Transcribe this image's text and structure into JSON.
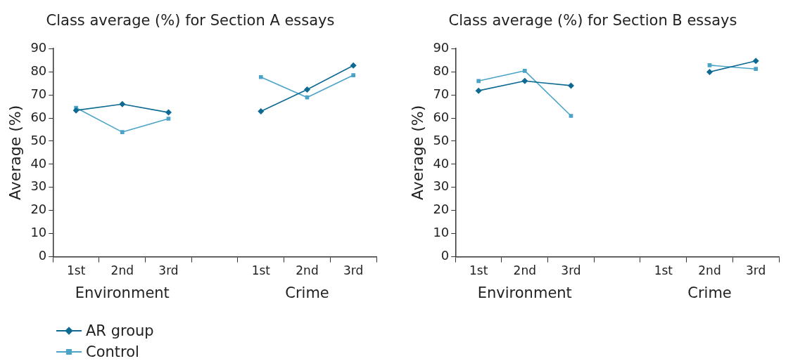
{
  "chart_data": [
    {
      "type": "line",
      "title": "Class average (%) for Section A essays",
      "ylabel": "Average (%)",
      "categories": [
        "1st",
        "2nd",
        "3rd",
        null,
        "1st",
        "2nd",
        "3rd"
      ],
      "annotations": [
        "Environment",
        "Crime"
      ],
      "series": [
        {
          "name": "AR group",
          "color": "#0e6a92",
          "marker": "diamond",
          "values": [
            63.3,
            66,
            62.4,
            null,
            62.9,
            72.3,
            82.7
          ]
        },
        {
          "name": "Control",
          "color": "#4ba3c8",
          "marker": "square",
          "values": [
            64.4,
            53.9,
            59.7,
            null,
            77.7,
            68.9,
            78.5
          ]
        }
      ],
      "ylim": [
        0,
        90
      ],
      "yticks": [
        0,
        10,
        20,
        30,
        40,
        50,
        60,
        70,
        80,
        90
      ],
      "grid": false,
      "legend": "bottom left"
    },
    {
      "type": "line",
      "title": "Class average (%) for Section B essays",
      "ylabel": "Average (%)",
      "categories": [
        "1st",
        "2nd",
        "3rd",
        null,
        "1st",
        "2nd",
        "3rd"
      ],
      "annotations": [
        "Environment",
        "Crime"
      ],
      "series": [
        {
          "color": "#0e6a92",
          "marker": "diamond",
          "values": [
            71.8,
            76,
            74,
            null,
            null,
            79.9,
            84.7
          ]
        },
        {
          "color": "#4ba3c8",
          "marker": "square",
          "values": [
            76,
            80.4,
            60.9,
            null,
            null,
            82.8,
            81.2
          ]
        }
      ],
      "ylim": [
        0,
        90
      ],
      "yticks": [
        0,
        10,
        20,
        30,
        40,
        50,
        60,
        70,
        80,
        90
      ],
      "grid": false
    }
  ]
}
